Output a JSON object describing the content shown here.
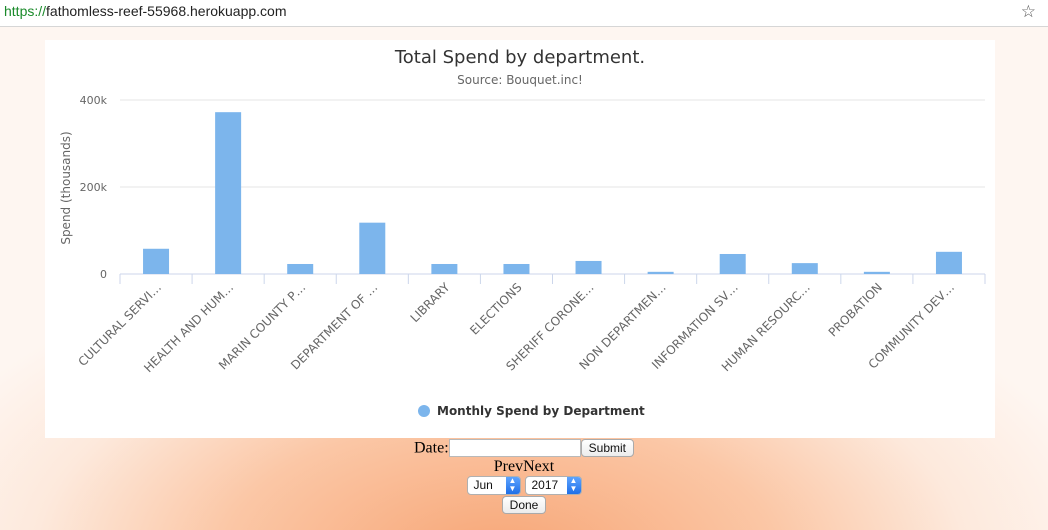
{
  "browser": {
    "url_scheme": "https://",
    "url_host": "fathomless-reef-55968.herokuapp.com",
    "bookmark_icon": "star-icon"
  },
  "chart_data": {
    "type": "bar",
    "title": "Total Spend by department.",
    "subtitle": "Source: Bouquet.inc!",
    "ylabel": "Spend (thousands)",
    "xlabel": "",
    "ylim": [
      0,
      400000
    ],
    "yticks": [
      {
        "value": 0,
        "label": "0"
      },
      {
        "value": 200000,
        "label": "200k"
      },
      {
        "value": 400000,
        "label": "400k"
      }
    ],
    "grid": true,
    "legend_position": "bottom-center",
    "bar_color": "#7cb5ec",
    "categories": [
      "CULTURAL SERVI…",
      "HEALTH AND HUM…",
      "MARIN COUNTY P…",
      "DEPARTMENT OF …",
      "LIBRARY",
      "ELECTIONS",
      "SHERIFF CORONE…",
      "NON DEPARTMEN…",
      "INFORMATION SV…",
      "HUMAN RESOURC…",
      "PROBATION",
      "COMMUNITY DEV…"
    ],
    "series": [
      {
        "name": "Monthly Spend by Department",
        "values": [
          58000,
          372000,
          23000,
          118000,
          23000,
          23000,
          30000,
          5000,
          46000,
          25000,
          5000,
          51000
        ]
      }
    ]
  },
  "controls": {
    "date_label": "Date:",
    "date_value": "",
    "submit_label": "Submit",
    "prev_label": "Prev",
    "next_label": "Next",
    "month_value": "Jun",
    "year_value": "2017",
    "done_label": "Done"
  }
}
